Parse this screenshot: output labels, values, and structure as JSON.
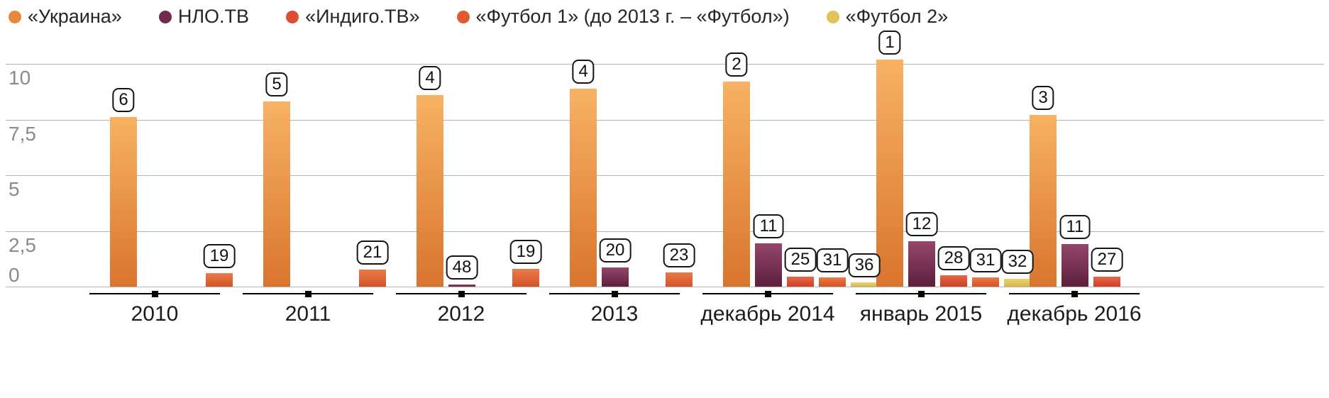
{
  "legend": {
    "items": [
      {
        "label": "«Украина»",
        "color": "#E8883C"
      },
      {
        "label": "НЛО.ТВ",
        "color": "#722B4D"
      },
      {
        "label": "«Индиго.ТВ»",
        "color": "#DC4E31"
      },
      {
        "label": "«Футбол 1» (до 2013 г. – «Футбол»)",
        "color": "#DF5B2F"
      },
      {
        "label": "«Футбол 2»",
        "color": "#E2C35A"
      }
    ]
  },
  "chart_data": {
    "type": "bar",
    "title": "",
    "xlabel": "",
    "ylabel": "",
    "ylim": [
      0,
      10
    ],
    "grid": true,
    "legend_position": "top",
    "yticks": [
      0,
      2.5,
      5,
      7.5,
      10
    ],
    "ytick_labels": [
      "0",
      "2,5",
      "5",
      "7,5",
      "10"
    ],
    "categories": [
      "2010",
      "2011",
      "2012",
      "2013",
      "декабрь 2014",
      "январь 2015",
      "декабрь 2016"
    ],
    "series": [
      {
        "name": "«Украина»",
        "gradient": [
          "#F7B264",
          "#D9752E"
        ],
        "values": [
          7.6,
          8.3,
          8.6,
          8.9,
          9.2,
          10.2,
          7.7
        ],
        "rank_labels": [
          "6",
          "5",
          "4",
          "4",
          "2",
          "1",
          "3"
        ]
      },
      {
        "name": "НЛО.ТВ",
        "gradient": [
          "#94476A",
          "#5C1F3C"
        ],
        "values": [
          null,
          null,
          0.08,
          0.85,
          1.95,
          2.05,
          1.9
        ],
        "rank_labels": [
          null,
          null,
          "48",
          "20",
          "11",
          "12",
          "11"
        ]
      },
      {
        "name": "«Индиго.ТВ»",
        "gradient": [
          "#E8664A",
          "#CB4126"
        ],
        "values": [
          null,
          null,
          null,
          null,
          0.45,
          0.5,
          0.45
        ],
        "rank_labels": [
          null,
          null,
          null,
          null,
          "25",
          "28",
          "27"
        ]
      },
      {
        "name": "«Футбол 1» (до 2013 г. – «Футбол»)",
        "gradient": [
          "#EB7A4A",
          "#D25426"
        ],
        "values": [
          0.6,
          0.75,
          0.8,
          0.65,
          0.4,
          0.4,
          null
        ],
        "rank_labels": [
          "19",
          "21",
          "19",
          "23",
          "31",
          "31",
          null
        ]
      },
      {
        "name": "«Футбол 2»",
        "gradient": [
          "#EDD26E",
          "#D4B84E"
        ],
        "values": [
          null,
          null,
          null,
          null,
          0.2,
          0.35,
          null
        ],
        "rank_labels": [
          null,
          null,
          null,
          null,
          "36",
          "32",
          null
        ]
      }
    ]
  }
}
